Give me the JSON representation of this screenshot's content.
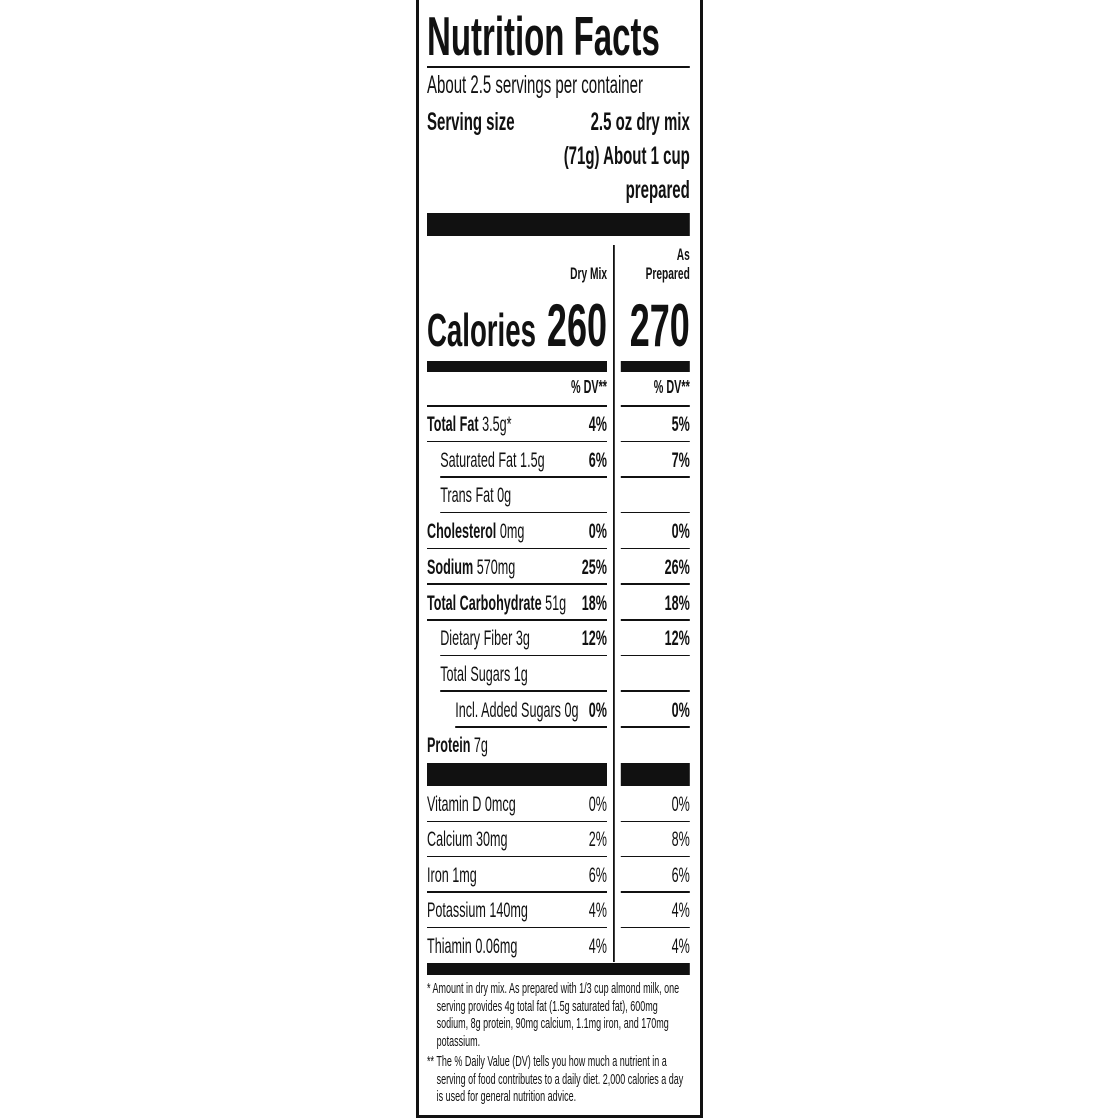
{
  "title": "Nutrition Facts",
  "servings_per_container": "About 2.5 servings per container",
  "serving_size": {
    "label": "Serving size",
    "line1": "2.5 oz dry mix",
    "line2": "(71g) About 1 cup",
    "line3": "prepared"
  },
  "columns": {
    "dry_mix": "Dry Mix",
    "as_prepared_1": "As",
    "as_prepared_2": "Prepared",
    "dv_header": "% DV**"
  },
  "calories": {
    "label": "Calories",
    "dry_mix": "260",
    "as_prepared": "270"
  },
  "nutrients": [
    {
      "name": "Total Fat",
      "amount": "3.5g*",
      "bold": true,
      "indent": 0,
      "dv_dry": "4%",
      "dv_prepared": "5%"
    },
    {
      "name": "Saturated Fat",
      "amount": "1.5g",
      "bold": false,
      "indent": 1,
      "dv_dry": "6%",
      "dv_prepared": "7%"
    },
    {
      "name": "Trans Fat",
      "amount": "0g",
      "bold": false,
      "indent": 1,
      "dv_dry": "",
      "dv_prepared": ""
    },
    {
      "name": "Cholesterol",
      "amount": "0mg",
      "bold": true,
      "indent": 0,
      "dv_dry": "0%",
      "dv_prepared": "0%"
    },
    {
      "name": "Sodium",
      "amount": "570mg",
      "bold": true,
      "indent": 0,
      "dv_dry": "25%",
      "dv_prepared": "26%"
    },
    {
      "name": "Total Carbohydrate",
      "amount": "51g",
      "bold": true,
      "indent": 0,
      "dv_dry": "18%",
      "dv_prepared": "18%"
    },
    {
      "name": "Dietary Fiber",
      "amount": "3g",
      "bold": false,
      "indent": 1,
      "dv_dry": "12%",
      "dv_prepared": "12%"
    },
    {
      "name": "Total Sugars",
      "amount": "1g",
      "bold": false,
      "indent": 1,
      "dv_dry": "",
      "dv_prepared": ""
    },
    {
      "name": "Incl. Added Sugars",
      "amount": "0g",
      "bold": false,
      "indent": 2,
      "dv_dry": "0%",
      "dv_prepared": "0%"
    },
    {
      "name": "Protein",
      "amount": "7g",
      "bold": true,
      "indent": 0,
      "dv_dry": "",
      "dv_prepared": ""
    }
  ],
  "vitamins": [
    {
      "name": "Vitamin D",
      "amount": "0mcg",
      "dv_dry": "0%",
      "dv_prepared": "0%"
    },
    {
      "name": "Calcium",
      "amount": "30mg",
      "dv_dry": "2%",
      "dv_prepared": "8%"
    },
    {
      "name": "Iron",
      "amount": "1mg",
      "dv_dry": "6%",
      "dv_prepared": "6%"
    },
    {
      "name": "Potassium",
      "amount": "140mg",
      "dv_dry": "4%",
      "dv_prepared": "4%"
    },
    {
      "name": "Thiamin",
      "amount": "0.06mg",
      "dv_dry": "4%",
      "dv_prepared": "4%"
    }
  ],
  "footnotes": [
    "* Amount in dry mix. As prepared with 1/3 cup almond milk, one serving provides 4g total fat (1.5g saturated fat), 600mg sodium, 8g protein, 90mg calcium, 1.1mg iron, and 170mg potassium.",
    "** The % Daily Value (DV) tells you how much a nutrient in a serving of food contributes to a daily diet. 2,000 calories a day is used for general nutrition advice."
  ]
}
